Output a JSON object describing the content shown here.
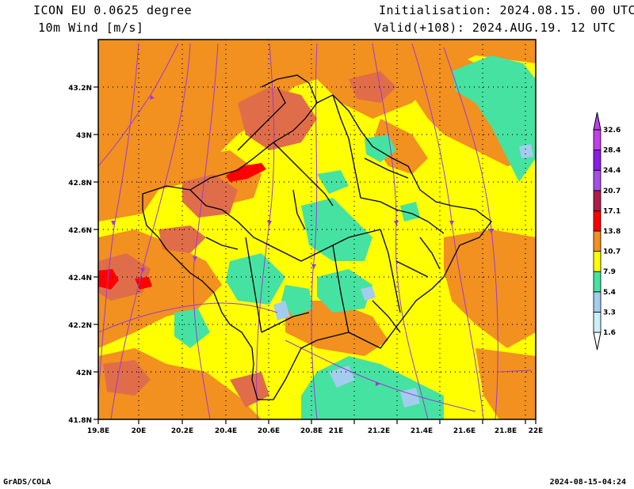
{
  "header": {
    "model": "ICON EU 0.0625 degree",
    "field": "10m Wind [m/s]",
    "init": "Initialisation: 2024.08.15. 00 UTC",
    "valid": "Valid(+108): 2024.AUG.19. 12 UTC"
  },
  "axes": {
    "lon_ticks": [
      "19.8E",
      "20E",
      "20.2E",
      "20.4E",
      "20.6E",
      "20.8E",
      "21E",
      "21.2E",
      "21.4E",
      "21.6E",
      "21.8E",
      "22E"
    ],
    "lat_ticks": [
      "43.2N",
      "43N",
      "42.8N",
      "42.6N",
      "42.4N",
      "42.2N",
      "42N",
      "41.8N"
    ]
  },
  "colorbar": {
    "levels": [
      "1.6",
      "3.3",
      "5.4",
      "7.9",
      "10.7",
      "13.8",
      "17.1",
      "20.7",
      "24.4",
      "28.4",
      "32.6"
    ],
    "colors": [
      "#ffffff",
      "#c9f0f6",
      "#a3ccee",
      "#46e2a2",
      "#ffff00",
      "#f29020",
      "#ff0000",
      "#b01c49",
      "#a64fe6",
      "#8a1ee6",
      "#c03fe8"
    ]
  },
  "map_colors": {
    "light": "#ffff00",
    "moderate": "#f29020",
    "strong": "#e06d4a",
    "calm": "#46e2a2",
    "weak": "#a3ccee",
    "gust": "#ff0000",
    "streamline": "#9c3ad8",
    "border": "#000000"
  },
  "footer": {
    "left": "GrADS/COLA",
    "right": "2024-08-15-04:24"
  }
}
